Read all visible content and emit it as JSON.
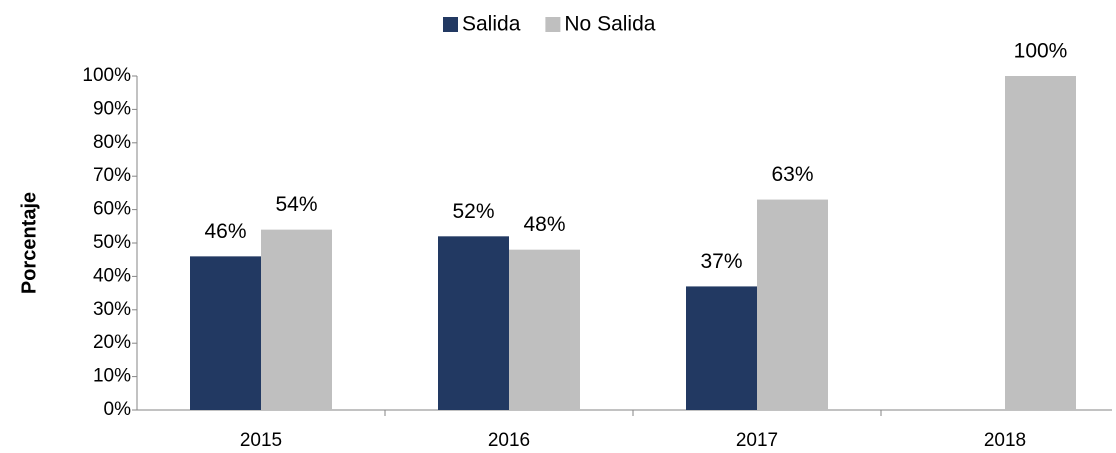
{
  "chart_data": {
    "type": "bar",
    "categories": [
      "2015",
      "2016",
      "2017",
      "2018"
    ],
    "series": [
      {
        "name": "Salida",
        "color": "#223962",
        "values": [
          46,
          52,
          37,
          null
        ],
        "value_labels": [
          "46%",
          "52%",
          "37%",
          null
        ]
      },
      {
        "name": "No Salida",
        "color": "#bfbfbf",
        "values": [
          54,
          48,
          63,
          100
        ],
        "value_labels": [
          "54%",
          "48%",
          "63%",
          "100%"
        ]
      }
    ],
    "ylabel": "Porcentaje",
    "ylim": [
      0,
      100
    ],
    "yticks": [
      {
        "value": 0,
        "label": "0%"
      },
      {
        "value": 10,
        "label": "10%"
      },
      {
        "value": 20,
        "label": "20%"
      },
      {
        "value": 30,
        "label": "30%"
      },
      {
        "value": 40,
        "label": "40%"
      },
      {
        "value": 50,
        "label": "50%"
      },
      {
        "value": 60,
        "label": "60%"
      },
      {
        "value": 70,
        "label": "70%"
      },
      {
        "value": 80,
        "label": "80%"
      },
      {
        "value": 90,
        "label": "90%"
      },
      {
        "value": 100,
        "label": "100%"
      }
    ],
    "legend": "top"
  }
}
